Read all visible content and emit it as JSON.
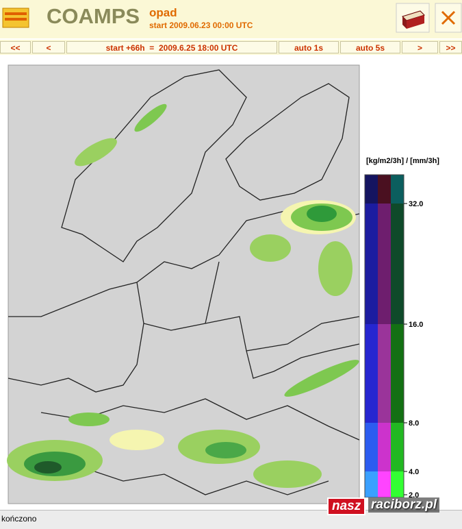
{
  "header": {
    "logo_title": "COAMPS",
    "product": "opad",
    "start": "start 2009.06.23 00:00 UTC"
  },
  "nav": {
    "buttons": [
      "<<",
      "<",
      "start +66h  =  2009.6.25 18:00 UTC",
      "auto 1s",
      "auto 5s",
      ">",
      ">>"
    ]
  },
  "legend": {
    "title": "[kg/m2/3h] / [mm/3h]",
    "ticks": [
      "32.0",
      "16.0",
      "8.0",
      "4.0",
      "2.0"
    ]
  },
  "status": "kończono",
  "watermark": {
    "part1": "nasz",
    "part2": "raciborz.pl"
  }
}
